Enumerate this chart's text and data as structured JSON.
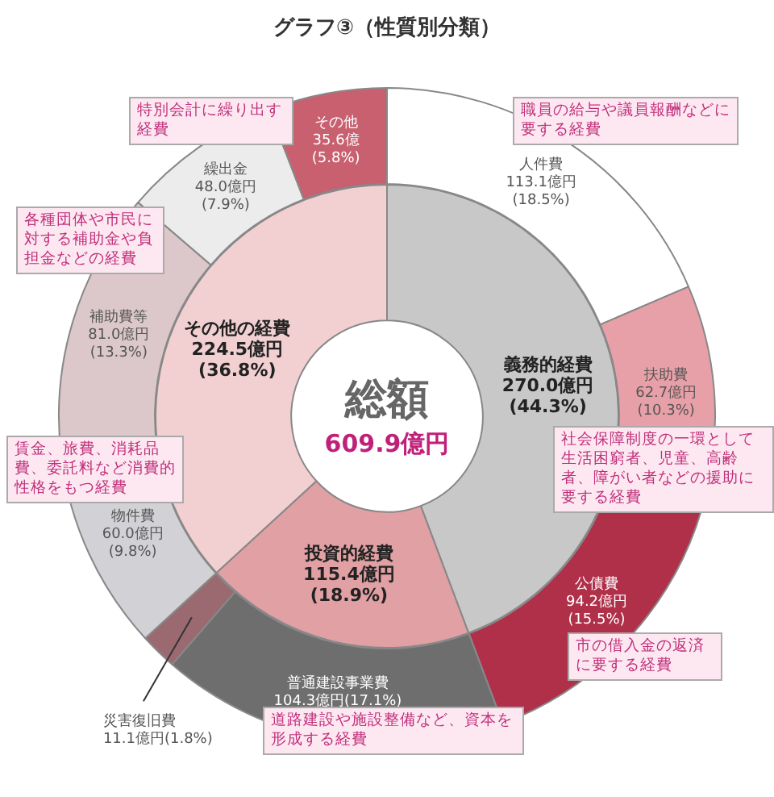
{
  "chart_data": [
    {
      "type": "donut",
      "title": "グラフ③（性質別分類）",
      "legend": false,
      "categories": [
        "人件費",
        "扶助費",
        "公債費",
        "普通建設事業費",
        "災害復旧費",
        "物件費",
        "補助費等",
        "繰出金",
        "その他"
      ],
      "values": [
        113.1,
        62.7,
        94.2,
        104.3,
        11.1,
        60.0,
        81.0,
        48.0,
        35.6
      ],
      "colors": [
        "#ffffff",
        "#e8a0a8",
        "#b0304a",
        "#6e6e6e",
        "#9a6a70",
        "#d2d2d6",
        "#dcc8ca",
        "#ececec",
        "#c86070"
      ],
      "value_labels": [
        "113.1億円\n(18.5%)",
        "62.7億円\n(10.3%)",
        "94.2億円\n(15.5%)",
        "104.3億円(17.1%)",
        "11.1億円(1.8%)",
        "60.0億円\n(9.8%)",
        "81.0億円\n(13.3%)",
        "48.0億円\n(7.9%)",
        "35.6億\n(5.8%)"
      ],
      "annotations": [
        "特別会計に繰り出す経費",
        "職員の給与や議員報酬などに要する経費",
        "各種団体や市民に対する補助金や負担金などの経費",
        "社会保障制度の一環として生活困窮者、児童、高齢者、障がい者などの援助に要する経費",
        "賃金、旅費、消耗品費、委託料など消費的性格をもつ経費",
        "市の借入金の返済に要する経費",
        "道路建設や施設整備など、資本を形成する経費"
      ]
    },
    {
      "type": "donut",
      "legend": false,
      "categories": [
        "義務的経費",
        "投資的経費",
        "その他の経費"
      ],
      "values": [
        270.0,
        115.4,
        224.5
      ],
      "colors": [
        "#c8c8c8",
        "#e0a0a4",
        "#f2d0d2"
      ],
      "value_labels": [
        "270.0億円\n(44.3%)",
        "115.4億円\n(18.9%)",
        "224.5億円\n(36.8%)"
      ],
      "annotations": [
        "総額",
        "609.9億円"
      ]
    }
  ]
}
